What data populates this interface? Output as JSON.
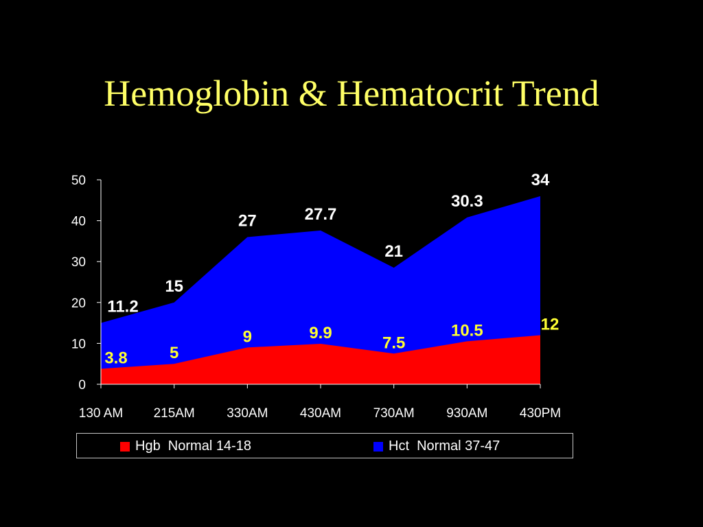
{
  "slide": {
    "title": "Hemoglobin & Hematocrit Trend"
  },
  "colors": {
    "background": "#000000",
    "title": "#FFFF66",
    "hgb_fill": "#FF0000",
    "hct_fill": "#0000FF",
    "hgb_label": "#FFFF33",
    "hct_label": "#FFFFFF",
    "axis": "#FFFFFF"
  },
  "chart_data": {
    "type": "area",
    "stacked": true,
    "categories": [
      "130 AM",
      "215AM",
      "330AM",
      "430AM",
      "730AM",
      "930AM",
      "430PM"
    ],
    "series": [
      {
        "name": "Hgb  Normal 14-18",
        "values": [
          3.8,
          5,
          9,
          9.9,
          7.5,
          10.5,
          12
        ],
        "labels": [
          "3.8",
          "5",
          "9",
          "9.9",
          "7.5",
          "10.5",
          "12"
        ],
        "color": "#FF0000"
      },
      {
        "name": "Hct  Normal 37-47",
        "values": [
          11.2,
          15,
          27,
          27.7,
          21,
          30.3,
          34
        ],
        "labels": [
          "11.2",
          "15",
          "27",
          "27.7",
          "21",
          "30.3",
          "34"
        ],
        "color": "#0000FF"
      }
    ],
    "yticks": [
      "0",
      "10",
      "20",
      "30",
      "40",
      "50"
    ],
    "ylim": [
      0,
      50
    ],
    "grid": false,
    "legend": "bottom"
  }
}
